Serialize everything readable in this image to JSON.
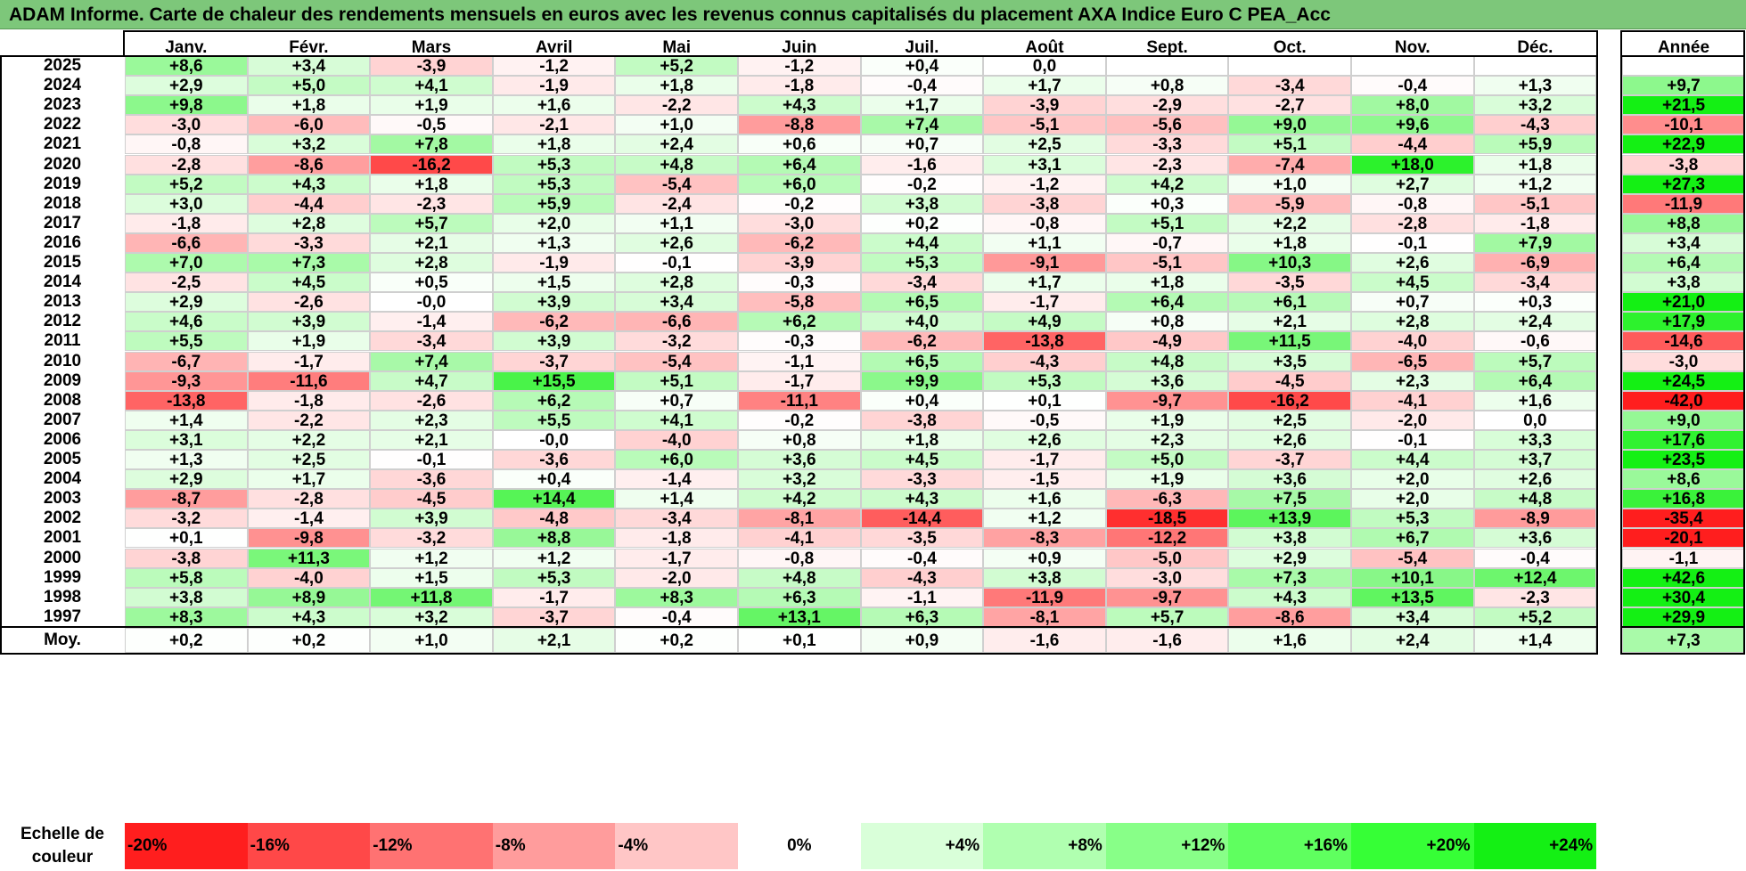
{
  "title": "ADAM Informe. Carte de chaleur des rendements mensuels en euros avec les revenus connus capitalisés du placement AXA Indice Euro C PEA_Acc",
  "chart_data": {
    "type": "heatmap",
    "columns": [
      "Janv.",
      "Févr.",
      "Mars",
      "Avril",
      "Mai",
      "Juin",
      "Juil.",
      "Août",
      "Sept.",
      "Oct.",
      "Nov.",
      "Déc."
    ],
    "year_column": "Année",
    "rows": [
      {
        "label": "2025",
        "values": [
          8.6,
          3.4,
          -3.9,
          -1.2,
          5.2,
          -1.2,
          0.4,
          0.0,
          null,
          null,
          null,
          null
        ],
        "year": null,
        "text": [
          "+8,6",
          "+3,4",
          "-3,9",
          "-1,2",
          "+5,2",
          "-1,2",
          "+0,4",
          "0,0",
          "",
          "",
          "",
          ""
        ],
        "year_text": ""
      },
      {
        "label": "2024",
        "values": [
          2.9,
          5.0,
          4.1,
          -1.9,
          1.8,
          -1.8,
          -0.4,
          1.7,
          0.8,
          -3.4,
          -0.4,
          1.3
        ],
        "year": 9.7,
        "text": [
          "+2,9",
          "+5,0",
          "+4,1",
          "-1,9",
          "+1,8",
          "-1,8",
          "-0,4",
          "+1,7",
          "+0,8",
          "-3,4",
          "-0,4",
          "+1,3"
        ],
        "year_text": "+9,7"
      },
      {
        "label": "2023",
        "values": [
          9.8,
          1.8,
          1.9,
          1.6,
          -2.2,
          4.3,
          1.7,
          -3.9,
          -2.9,
          -2.7,
          8.0,
          3.2
        ],
        "year": 21.5,
        "text": [
          "+9,8",
          "+1,8",
          "+1,9",
          "+1,6",
          "-2,2",
          "+4,3",
          "+1,7",
          "-3,9",
          "-2,9",
          "-2,7",
          "+8,0",
          "+3,2"
        ],
        "year_text": "+21,5"
      },
      {
        "label": "2022",
        "values": [
          -3.0,
          -6.0,
          -0.5,
          -2.1,
          1.0,
          -8.8,
          7.4,
          -5.1,
          -5.6,
          9.0,
          9.6,
          -4.3
        ],
        "year": -10.1,
        "text": [
          "-3,0",
          "-6,0",
          "-0,5",
          "-2,1",
          "+1,0",
          "-8,8",
          "+7,4",
          "-5,1",
          "-5,6",
          "+9,0",
          "+9,6",
          "-4,3"
        ],
        "year_text": "-10,1"
      },
      {
        "label": "2021",
        "values": [
          -0.8,
          3.2,
          7.8,
          1.8,
          2.4,
          0.6,
          0.7,
          2.5,
          -3.3,
          5.1,
          -4.4,
          5.9
        ],
        "year": 22.9,
        "text": [
          "-0,8",
          "+3,2",
          "+7,8",
          "+1,8",
          "+2,4",
          "+0,6",
          "+0,7",
          "+2,5",
          "-3,3",
          "+5,1",
          "-4,4",
          "+5,9"
        ],
        "year_text": "+22,9"
      },
      {
        "label": "2020",
        "values": [
          -2.8,
          -8.6,
          -16.2,
          5.3,
          4.8,
          6.4,
          -1.6,
          3.1,
          -2.3,
          -7.4,
          18.0,
          1.8
        ],
        "year": -3.8,
        "text": [
          "-2,8",
          "-8,6",
          "-16,2",
          "+5,3",
          "+4,8",
          "+6,4",
          "-1,6",
          "+3,1",
          "-2,3",
          "-7,4",
          "+18,0",
          "+1,8"
        ],
        "year_text": "-3,8"
      },
      {
        "label": "2019",
        "values": [
          5.2,
          4.3,
          1.8,
          5.3,
          -5.4,
          6.0,
          -0.2,
          -1.2,
          4.2,
          1.0,
          2.7,
          1.2
        ],
        "year": 27.3,
        "text": [
          "+5,2",
          "+4,3",
          "+1,8",
          "+5,3",
          "-5,4",
          "+6,0",
          "-0,2",
          "-1,2",
          "+4,2",
          "+1,0",
          "+2,7",
          "+1,2"
        ],
        "year_text": "+27,3"
      },
      {
        "label": "2018",
        "values": [
          3.0,
          -4.4,
          -2.3,
          5.9,
          -2.4,
          -0.2,
          3.8,
          -3.8,
          0.3,
          -5.9,
          -0.8,
          -5.1
        ],
        "year": -11.9,
        "text": [
          "+3,0",
          "-4,4",
          "-2,3",
          "+5,9",
          "-2,4",
          "-0,2",
          "+3,8",
          "-3,8",
          "+0,3",
          "-5,9",
          "-0,8",
          "-5,1"
        ],
        "year_text": "-11,9"
      },
      {
        "label": "2017",
        "values": [
          -1.8,
          2.8,
          5.7,
          2.0,
          1.1,
          -3.0,
          0.2,
          -0.8,
          5.1,
          2.2,
          -2.8,
          -1.8
        ],
        "year": 8.8,
        "text": [
          "-1,8",
          "+2,8",
          "+5,7",
          "+2,0",
          "+1,1",
          "-3,0",
          "+0,2",
          "-0,8",
          "+5,1",
          "+2,2",
          "-2,8",
          "-1,8"
        ],
        "year_text": "+8,8"
      },
      {
        "label": "2016",
        "values": [
          -6.6,
          -3.3,
          2.1,
          1.3,
          2.6,
          -6.2,
          4.4,
          1.1,
          -0.7,
          1.8,
          -0.1,
          7.9
        ],
        "year": 3.4,
        "text": [
          "-6,6",
          "-3,3",
          "+2,1",
          "+1,3",
          "+2,6",
          "-6,2",
          "+4,4",
          "+1,1",
          "-0,7",
          "+1,8",
          "-0,1",
          "+7,9"
        ],
        "year_text": "+3,4"
      },
      {
        "label": "2015",
        "values": [
          7.0,
          7.3,
          2.8,
          -1.9,
          -0.1,
          -3.9,
          5.3,
          -9.1,
          -5.1,
          10.3,
          2.6,
          -6.9
        ],
        "year": 6.4,
        "text": [
          "+7,0",
          "+7,3",
          "+2,8",
          "-1,9",
          "-0,1",
          "-3,9",
          "+5,3",
          "-9,1",
          "-5,1",
          "+10,3",
          "+2,6",
          "-6,9"
        ],
        "year_text": "+6,4"
      },
      {
        "label": "2014",
        "values": [
          -2.5,
          4.5,
          0.5,
          1.5,
          2.8,
          -0.3,
          -3.4,
          1.7,
          1.8,
          -3.5,
          4.5,
          -3.4
        ],
        "year": 3.8,
        "text": [
          "-2,5",
          "+4,5",
          "+0,5",
          "+1,5",
          "+2,8",
          "-0,3",
          "-3,4",
          "+1,7",
          "+1,8",
          "-3,5",
          "+4,5",
          "-3,4"
        ],
        "year_text": "+3,8"
      },
      {
        "label": "2013",
        "values": [
          2.9,
          -2.6,
          -0.0,
          3.9,
          3.4,
          -5.8,
          6.5,
          -1.7,
          6.4,
          6.1,
          0.7,
          0.3
        ],
        "year": 21.0,
        "text": [
          "+2,9",
          "-2,6",
          "-0,0",
          "+3,9",
          "+3,4",
          "-5,8",
          "+6,5",
          "-1,7",
          "+6,4",
          "+6,1",
          "+0,7",
          "+0,3"
        ],
        "year_text": "+21,0"
      },
      {
        "label": "2012",
        "values": [
          4.6,
          3.9,
          -1.4,
          -6.2,
          -6.6,
          6.2,
          4.0,
          4.9,
          0.8,
          2.1,
          2.8,
          2.4
        ],
        "year": 17.9,
        "text": [
          "+4,6",
          "+3,9",
          "-1,4",
          "-6,2",
          "-6,6",
          "+6,2",
          "+4,0",
          "+4,9",
          "+0,8",
          "+2,1",
          "+2,8",
          "+2,4"
        ],
        "year_text": "+17,9"
      },
      {
        "label": "2011",
        "values": [
          5.5,
          1.9,
          -3.4,
          3.9,
          -3.2,
          -0.3,
          -6.2,
          -13.8,
          -4.9,
          11.5,
          -4.0,
          -0.6
        ],
        "year": -14.6,
        "text": [
          "+5,5",
          "+1,9",
          "-3,4",
          "+3,9",
          "-3,2",
          "-0,3",
          "-6,2",
          "-13,8",
          "-4,9",
          "+11,5",
          "-4,0",
          "-0,6"
        ],
        "year_text": "-14,6"
      },
      {
        "label": "2010",
        "values": [
          -6.7,
          -1.7,
          7.4,
          -3.7,
          -5.4,
          -1.1,
          6.5,
          -4.3,
          4.8,
          3.5,
          -6.5,
          5.7
        ],
        "year": -3.0,
        "text": [
          "-6,7",
          "-1,7",
          "+7,4",
          "-3,7",
          "-5,4",
          "-1,1",
          "+6,5",
          "-4,3",
          "+4,8",
          "+3,5",
          "-6,5",
          "+5,7"
        ],
        "year_text": "-3,0"
      },
      {
        "label": "2009",
        "values": [
          -9.3,
          -11.6,
          4.7,
          15.5,
          5.1,
          -1.7,
          9.9,
          5.3,
          3.6,
          -4.5,
          2.3,
          6.4
        ],
        "year": 24.5,
        "text": [
          "-9,3",
          "-11,6",
          "+4,7",
          "+15,5",
          "+5,1",
          "-1,7",
          "+9,9",
          "+5,3",
          "+3,6",
          "-4,5",
          "+2,3",
          "+6,4"
        ],
        "year_text": "+24,5"
      },
      {
        "label": "2008",
        "values": [
          -13.8,
          -1.8,
          -2.6,
          6.2,
          0.7,
          -11.1,
          0.4,
          0.1,
          -9.7,
          -16.2,
          -4.1,
          1.6
        ],
        "year": -42.0,
        "text": [
          "-13,8",
          "-1,8",
          "-2,6",
          "+6,2",
          "+0,7",
          "-11,1",
          "+0,4",
          "+0,1",
          "-9,7",
          "-16,2",
          "-4,1",
          "+1,6"
        ],
        "year_text": "-42,0"
      },
      {
        "label": "2007",
        "values": [
          1.4,
          -2.2,
          2.3,
          5.5,
          4.1,
          -0.2,
          -3.8,
          -0.5,
          1.9,
          2.5,
          -2.0,
          0.0
        ],
        "year": 9.0,
        "text": [
          "+1,4",
          "-2,2",
          "+2,3",
          "+5,5",
          "+4,1",
          "-0,2",
          "-3,8",
          "-0,5",
          "+1,9",
          "+2,5",
          "-2,0",
          "0,0"
        ],
        "year_text": "+9,0"
      },
      {
        "label": "2006",
        "values": [
          3.1,
          2.2,
          2.1,
          -0.0,
          -4.0,
          0.8,
          1.8,
          2.6,
          2.3,
          2.6,
          -0.1,
          3.3
        ],
        "year": 17.6,
        "text": [
          "+3,1",
          "+2,2",
          "+2,1",
          "-0,0",
          "-4,0",
          "+0,8",
          "+1,8",
          "+2,6",
          "+2,3",
          "+2,6",
          "-0,1",
          "+3,3"
        ],
        "year_text": "+17,6"
      },
      {
        "label": "2005",
        "values": [
          1.3,
          2.5,
          -0.1,
          -3.6,
          6.0,
          3.6,
          4.5,
          -1.7,
          5.0,
          -3.7,
          4.4,
          3.7
        ],
        "year": 23.5,
        "text": [
          "+1,3",
          "+2,5",
          "-0,1",
          "-3,6",
          "+6,0",
          "+3,6",
          "+4,5",
          "-1,7",
          "+5,0",
          "-3,7",
          "+4,4",
          "+3,7"
        ],
        "year_text": "+23,5"
      },
      {
        "label": "2004",
        "values": [
          2.9,
          1.7,
          -3.6,
          0.4,
          -1.4,
          3.2,
          -3.3,
          -1.5,
          1.9,
          3.6,
          2.0,
          2.6
        ],
        "year": 8.6,
        "text": [
          "+2,9",
          "+1,7",
          "-3,6",
          "+0,4",
          "-1,4",
          "+3,2",
          "-3,3",
          "-1,5",
          "+1,9",
          "+3,6",
          "+2,0",
          "+2,6"
        ],
        "year_text": "+8,6"
      },
      {
        "label": "2003",
        "values": [
          -8.7,
          -2.8,
          -4.5,
          14.4,
          1.4,
          4.2,
          4.3,
          1.6,
          -6.3,
          7.5,
          2.0,
          4.8
        ],
        "year": 16.8,
        "text": [
          "-8,7",
          "-2,8",
          "-4,5",
          "+14,4",
          "+1,4",
          "+4,2",
          "+4,3",
          "+1,6",
          "-6,3",
          "+7,5",
          "+2,0",
          "+4,8"
        ],
        "year_text": "+16,8"
      },
      {
        "label": "2002",
        "values": [
          -3.2,
          -1.4,
          3.9,
          -4.8,
          -3.4,
          -8.1,
          -14.4,
          1.2,
          -18.5,
          13.9,
          5.3,
          -8.9
        ],
        "year": -35.4,
        "text": [
          "-3,2",
          "-1,4",
          "+3,9",
          "-4,8",
          "-3,4",
          "-8,1",
          "-14,4",
          "+1,2",
          "-18,5",
          "+13,9",
          "+5,3",
          "-8,9"
        ],
        "year_text": "-35,4"
      },
      {
        "label": "2001",
        "values": [
          0.1,
          -9.8,
          -3.2,
          8.8,
          -1.8,
          -4.1,
          -3.5,
          -8.3,
          -12.2,
          3.8,
          6.7,
          3.6
        ],
        "year": -20.1,
        "text": [
          "+0,1",
          "-9,8",
          "-3,2",
          "+8,8",
          "-1,8",
          "-4,1",
          "-3,5",
          "-8,3",
          "-12,2",
          "+3,8",
          "+6,7",
          "+3,6"
        ],
        "year_text": "-20,1"
      },
      {
        "label": "2000",
        "values": [
          -3.8,
          11.3,
          1.2,
          1.2,
          -1.7,
          -0.8,
          -0.4,
          0.9,
          -5.0,
          2.9,
          -5.4,
          -0.4
        ],
        "year": -1.1,
        "text": [
          "-3,8",
          "+11,3",
          "+1,2",
          "+1,2",
          "-1,7",
          "-0,8",
          "-0,4",
          "+0,9",
          "-5,0",
          "+2,9",
          "-5,4",
          "-0,4"
        ],
        "year_text": "-1,1"
      },
      {
        "label": "1999",
        "values": [
          5.8,
          -4.0,
          1.5,
          5.3,
          -2.0,
          4.8,
          -4.3,
          3.8,
          -3.0,
          7.3,
          10.1,
          12.4
        ],
        "year": 42.6,
        "text": [
          "+5,8",
          "-4,0",
          "+1,5",
          "+5,3",
          "-2,0",
          "+4,8",
          "-4,3",
          "+3,8",
          "-3,0",
          "+7,3",
          "+10,1",
          "+12,4"
        ],
        "year_text": "+42,6"
      },
      {
        "label": "1998",
        "values": [
          3.8,
          8.9,
          11.8,
          -1.7,
          8.3,
          6.3,
          -1.1,
          -11.9,
          -9.7,
          4.3,
          13.5,
          -2.3
        ],
        "year": 30.4,
        "text": [
          "+3,8",
          "+8,9",
          "+11,8",
          "-1,7",
          "+8,3",
          "+6,3",
          "-1,1",
          "-11,9",
          "-9,7",
          "+4,3",
          "+13,5",
          "-2,3"
        ],
        "year_text": "+30,4"
      },
      {
        "label": "1997",
        "values": [
          8.3,
          4.3,
          3.2,
          -3.7,
          -0.4,
          13.1,
          6.3,
          -8.1,
          5.7,
          -8.6,
          3.4,
          5.2
        ],
        "year": 29.9,
        "text": [
          "+8,3",
          "+4,3",
          "+3,2",
          "-3,7",
          "-0,4",
          "+13,1",
          "+6,3",
          "-8,1",
          "+5,7",
          "-8,6",
          "+3,4",
          "+5,2"
        ],
        "year_text": "+29,9"
      }
    ],
    "average": {
      "label": "Moy.",
      "values": [
        0.2,
        0.2,
        1.0,
        2.1,
        0.2,
        0.1,
        0.9,
        -1.6,
        -1.6,
        1.6,
        2.4,
        1.4
      ],
      "year": 7.3,
      "text": [
        "+0,2",
        "+0,2",
        "+1,0",
        "+2,1",
        "+0,2",
        "+0,1",
        "+0,9",
        "-1,6",
        "-1,6",
        "+1,6",
        "+2,4",
        "+1,4"
      ],
      "year_text": "+7,3"
    },
    "scale": {
      "label": "Echelle de couleur",
      "steps": [
        {
          "value": -20,
          "text": "-20%",
          "color": "#ff1e1e"
        },
        {
          "value": -16,
          "text": "-16%",
          "color": "#ff4848"
        },
        {
          "value": -12,
          "text": "-12%",
          "color": "#ff7272"
        },
        {
          "value": -8,
          "text": "-8%",
          "color": "#ff9c9c"
        },
        {
          "value": -4,
          "text": "-4%",
          "color": "#ffc6c6"
        },
        {
          "value": 0,
          "text": "0%",
          "color": "#ffffff"
        },
        {
          "value": 4,
          "text": "+4%",
          "color": "#d9ffd9"
        },
        {
          "value": 8,
          "text": "+8%",
          "color": "#b0ffb0"
        },
        {
          "value": 12,
          "text": "+12%",
          "color": "#88ff88"
        },
        {
          "value": 16,
          "text": "+16%",
          "color": "#5fff5f"
        },
        {
          "value": 20,
          "text": "+20%",
          "color": "#36ff36"
        },
        {
          "value": 24,
          "text": "+24%",
          "color": "#14f014"
        }
      ]
    },
    "colors": {
      "negative_max": "#ff1e1e",
      "zero": "#ffffff",
      "positive_max": "#14f014",
      "title_bg": "#7dc77a"
    }
  }
}
